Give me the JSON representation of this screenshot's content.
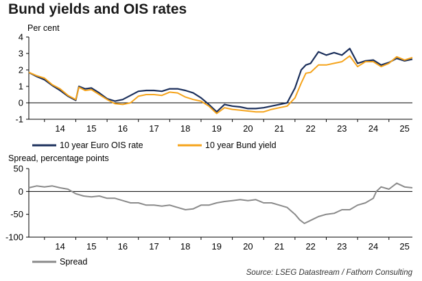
{
  "title": "Bund yields and OIS rates",
  "source": "Source: LSEG Datastream / Fathom Consulting",
  "colors": {
    "ois": "#1b2f5b",
    "bund": "#f5a31a",
    "spread": "#8a8a8a",
    "axis": "#000000"
  },
  "chart_data": [
    {
      "type": "line",
      "ylabel": "Per cent",
      "ylim": [
        -1,
        4
      ],
      "yticks": [
        -1,
        0,
        1,
        2,
        3,
        4
      ],
      "xlim": [
        2013.5,
        2025.75
      ],
      "xtick_labels": [
        "14",
        "15",
        "16",
        "17",
        "18",
        "19",
        "20",
        "21",
        "22",
        "23",
        "24",
        "25"
      ],
      "legend": [
        "10 year Euro OIS rate",
        "10 year Bund yield"
      ],
      "series": [
        {
          "name": "10 year Euro OIS rate",
          "x": [
            2013.5,
            2013.75,
            2014.0,
            2014.25,
            2014.5,
            2014.75,
            2015.0,
            2015.1,
            2015.3,
            2015.5,
            2015.75,
            2016.0,
            2016.25,
            2016.5,
            2016.75,
            2017.0,
            2017.25,
            2017.5,
            2017.75,
            2018.0,
            2018.25,
            2018.5,
            2018.75,
            2019.0,
            2019.25,
            2019.5,
            2019.75,
            2020.0,
            2020.25,
            2020.5,
            2020.75,
            2021.0,
            2021.25,
            2021.5,
            2021.75,
            2022.0,
            2022.2,
            2022.35,
            2022.5,
            2022.75,
            2023.0,
            2023.25,
            2023.5,
            2023.75,
            2024.0,
            2024.25,
            2024.5,
            2024.75,
            2025.0,
            2025.25,
            2025.5,
            2025.75
          ],
          "values": [
            1.85,
            1.6,
            1.4,
            1.05,
            0.75,
            0.4,
            0.15,
            1.0,
            0.85,
            0.9,
            0.6,
            0.25,
            0.1,
            0.2,
            0.45,
            0.7,
            0.75,
            0.75,
            0.7,
            0.85,
            0.85,
            0.75,
            0.6,
            0.3,
            -0.1,
            -0.55,
            -0.1,
            -0.2,
            -0.25,
            -0.35,
            -0.35,
            -0.3,
            -0.2,
            -0.1,
            0.0,
            0.9,
            2.0,
            2.3,
            2.4,
            3.1,
            2.9,
            3.05,
            2.9,
            3.3,
            2.4,
            2.55,
            2.6,
            2.3,
            2.45,
            2.7,
            2.55,
            2.65
          ]
        },
        {
          "name": "10 year Bund yield",
          "x": [
            2013.5,
            2013.75,
            2014.0,
            2014.25,
            2014.5,
            2014.75,
            2015.0,
            2015.1,
            2015.3,
            2015.5,
            2015.75,
            2016.0,
            2016.25,
            2016.5,
            2016.75,
            2017.0,
            2017.25,
            2017.5,
            2017.75,
            2018.0,
            2018.25,
            2018.5,
            2018.75,
            2019.0,
            2019.25,
            2019.5,
            2019.75,
            2020.0,
            2020.25,
            2020.5,
            2020.75,
            2021.0,
            2021.25,
            2021.5,
            2021.75,
            2022.0,
            2022.2,
            2022.35,
            2022.5,
            2022.75,
            2023.0,
            2023.25,
            2023.5,
            2023.75,
            2024.0,
            2024.25,
            2024.5,
            2024.75,
            2025.0,
            2025.25,
            2025.5,
            2025.75
          ],
          "values": [
            1.85,
            1.65,
            1.5,
            1.1,
            0.85,
            0.45,
            0.2,
            0.95,
            0.75,
            0.8,
            0.5,
            0.2,
            -0.05,
            -0.1,
            0.0,
            0.4,
            0.5,
            0.5,
            0.45,
            0.65,
            0.6,
            0.35,
            0.2,
            0.1,
            -0.2,
            -0.65,
            -0.3,
            -0.4,
            -0.45,
            -0.5,
            -0.55,
            -0.55,
            -0.4,
            -0.3,
            -0.2,
            0.3,
            1.2,
            1.8,
            1.85,
            2.3,
            2.3,
            2.4,
            2.5,
            2.85,
            2.2,
            2.5,
            2.5,
            2.2,
            2.4,
            2.8,
            2.6,
            2.75
          ]
        }
      ]
    },
    {
      "type": "line",
      "ylabel": "Spread, percentage points",
      "ylim": [
        -100,
        50
      ],
      "yticks": [
        -100,
        -50,
        0,
        50
      ],
      "xlim": [
        2013.5,
        2025.75
      ],
      "xtick_labels": [
        "14",
        "15",
        "16",
        "17",
        "18",
        "19",
        "20",
        "21",
        "22",
        "23",
        "24",
        "25"
      ],
      "legend": [
        "Spread"
      ],
      "series": [
        {
          "name": "Spread",
          "x": [
            2013.5,
            2013.75,
            2014.0,
            2014.25,
            2014.5,
            2014.75,
            2015.0,
            2015.25,
            2015.5,
            2015.75,
            2016.0,
            2016.25,
            2016.5,
            2016.75,
            2017.0,
            2017.25,
            2017.5,
            2017.75,
            2018.0,
            2018.25,
            2018.5,
            2018.75,
            2019.0,
            2019.25,
            2019.5,
            2019.75,
            2020.0,
            2020.25,
            2020.5,
            2020.75,
            2021.0,
            2021.25,
            2021.5,
            2021.75,
            2022.0,
            2022.15,
            2022.3,
            2022.45,
            2022.6,
            2022.75,
            2023.0,
            2023.25,
            2023.5,
            2023.75,
            2024.0,
            2024.25,
            2024.5,
            2024.6,
            2024.75,
            2025.0,
            2025.25,
            2025.5,
            2025.75
          ],
          "values": [
            8,
            12,
            10,
            12,
            8,
            5,
            -5,
            -10,
            -12,
            -10,
            -15,
            -15,
            -20,
            -25,
            -25,
            -30,
            -30,
            -32,
            -30,
            -35,
            -40,
            -38,
            -30,
            -30,
            -25,
            -22,
            -20,
            -18,
            -20,
            -18,
            -25,
            -25,
            -30,
            -35,
            -50,
            -62,
            -70,
            -65,
            -60,
            -55,
            -50,
            -48,
            -40,
            -40,
            -30,
            -25,
            -15,
            0,
            10,
            5,
            18,
            10,
            8
          ]
        }
      ]
    }
  ]
}
